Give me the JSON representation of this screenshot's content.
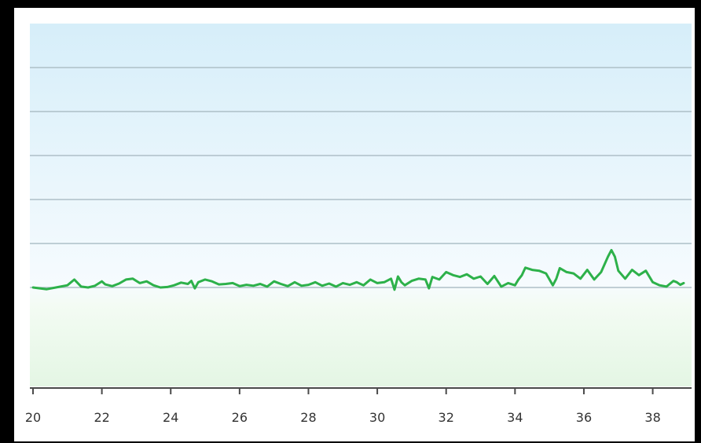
{
  "chart_data": {
    "type": "line",
    "title": "",
    "xlabel": "",
    "ylabel": "",
    "x_tick_labels": [
      "20",
      "22",
      "24",
      "26",
      "28",
      "30",
      "32",
      "34",
      "36",
      "38"
    ],
    "xlim": [
      20,
      38.9
    ],
    "ylim": [
      0,
      7
    ],
    "y_gridlines": [
      1,
      2,
      3,
      4,
      5,
      6
    ],
    "grid": true,
    "legend": "none",
    "series": [
      {
        "color": "#2db14a",
        "x": [
          20.0,
          20.4,
          20.8,
          21.0,
          21.2,
          21.4,
          21.6,
          21.8,
          22.0,
          22.1,
          22.3,
          22.5,
          22.7,
          22.9,
          23.1,
          23.3,
          23.5,
          23.7,
          23.9,
          24.1,
          24.3,
          24.5,
          24.6,
          24.7,
          24.8,
          25.0,
          25.2,
          25.4,
          25.6,
          25.8,
          26.0,
          26.2,
          26.4,
          26.6,
          26.8,
          27.0,
          27.2,
          27.4,
          27.6,
          27.8,
          28.0,
          28.2,
          28.4,
          28.6,
          28.8,
          29.0,
          29.2,
          29.4,
          29.6,
          29.8,
          30.0,
          30.2,
          30.4,
          30.5,
          30.6,
          30.7,
          30.8,
          31.0,
          31.2,
          31.4,
          31.5,
          31.6,
          31.8,
          32.0,
          32.2,
          32.4,
          32.6,
          32.8,
          33.0,
          33.2,
          33.4,
          33.6,
          33.8,
          34.0,
          34.1,
          34.2,
          34.3,
          34.5,
          34.7,
          34.9,
          35.1,
          35.2,
          35.3,
          35.5,
          35.7,
          35.9,
          36.1,
          36.3,
          36.5,
          36.7,
          36.8,
          36.9,
          37.0,
          37.2,
          37.4,
          37.6,
          37.8,
          38.0,
          38.2,
          38.4,
          38.6,
          38.7,
          38.8,
          38.9
        ],
        "y": [
          1.0,
          0.96,
          1.02,
          1.05,
          1.18,
          1.02,
          1.0,
          1.04,
          1.14,
          1.07,
          1.03,
          1.09,
          1.18,
          1.2,
          1.1,
          1.14,
          1.05,
          1.0,
          1.01,
          1.05,
          1.11,
          1.08,
          1.15,
          0.98,
          1.12,
          1.18,
          1.14,
          1.07,
          1.08,
          1.1,
          1.03,
          1.06,
          1.04,
          1.08,
          1.02,
          1.14,
          1.08,
          1.03,
          1.12,
          1.04,
          1.06,
          1.12,
          1.04,
          1.09,
          1.02,
          1.1,
          1.06,
          1.12,
          1.05,
          1.18,
          1.1,
          1.12,
          1.2,
          0.95,
          1.25,
          1.12,
          1.05,
          1.15,
          1.2,
          1.18,
          0.98,
          1.24,
          1.18,
          1.35,
          1.28,
          1.24,
          1.3,
          1.2,
          1.25,
          1.08,
          1.26,
          1.02,
          1.1,
          1.05,
          1.18,
          1.28,
          1.45,
          1.4,
          1.38,
          1.32,
          1.05,
          1.2,
          1.44,
          1.35,
          1.32,
          1.2,
          1.4,
          1.18,
          1.35,
          1.7,
          1.85,
          1.7,
          1.38,
          1.2,
          1.4,
          1.28,
          1.38,
          1.12,
          1.05,
          1.02,
          1.15,
          1.12,
          1.06,
          1.1
        ]
      }
    ]
  }
}
